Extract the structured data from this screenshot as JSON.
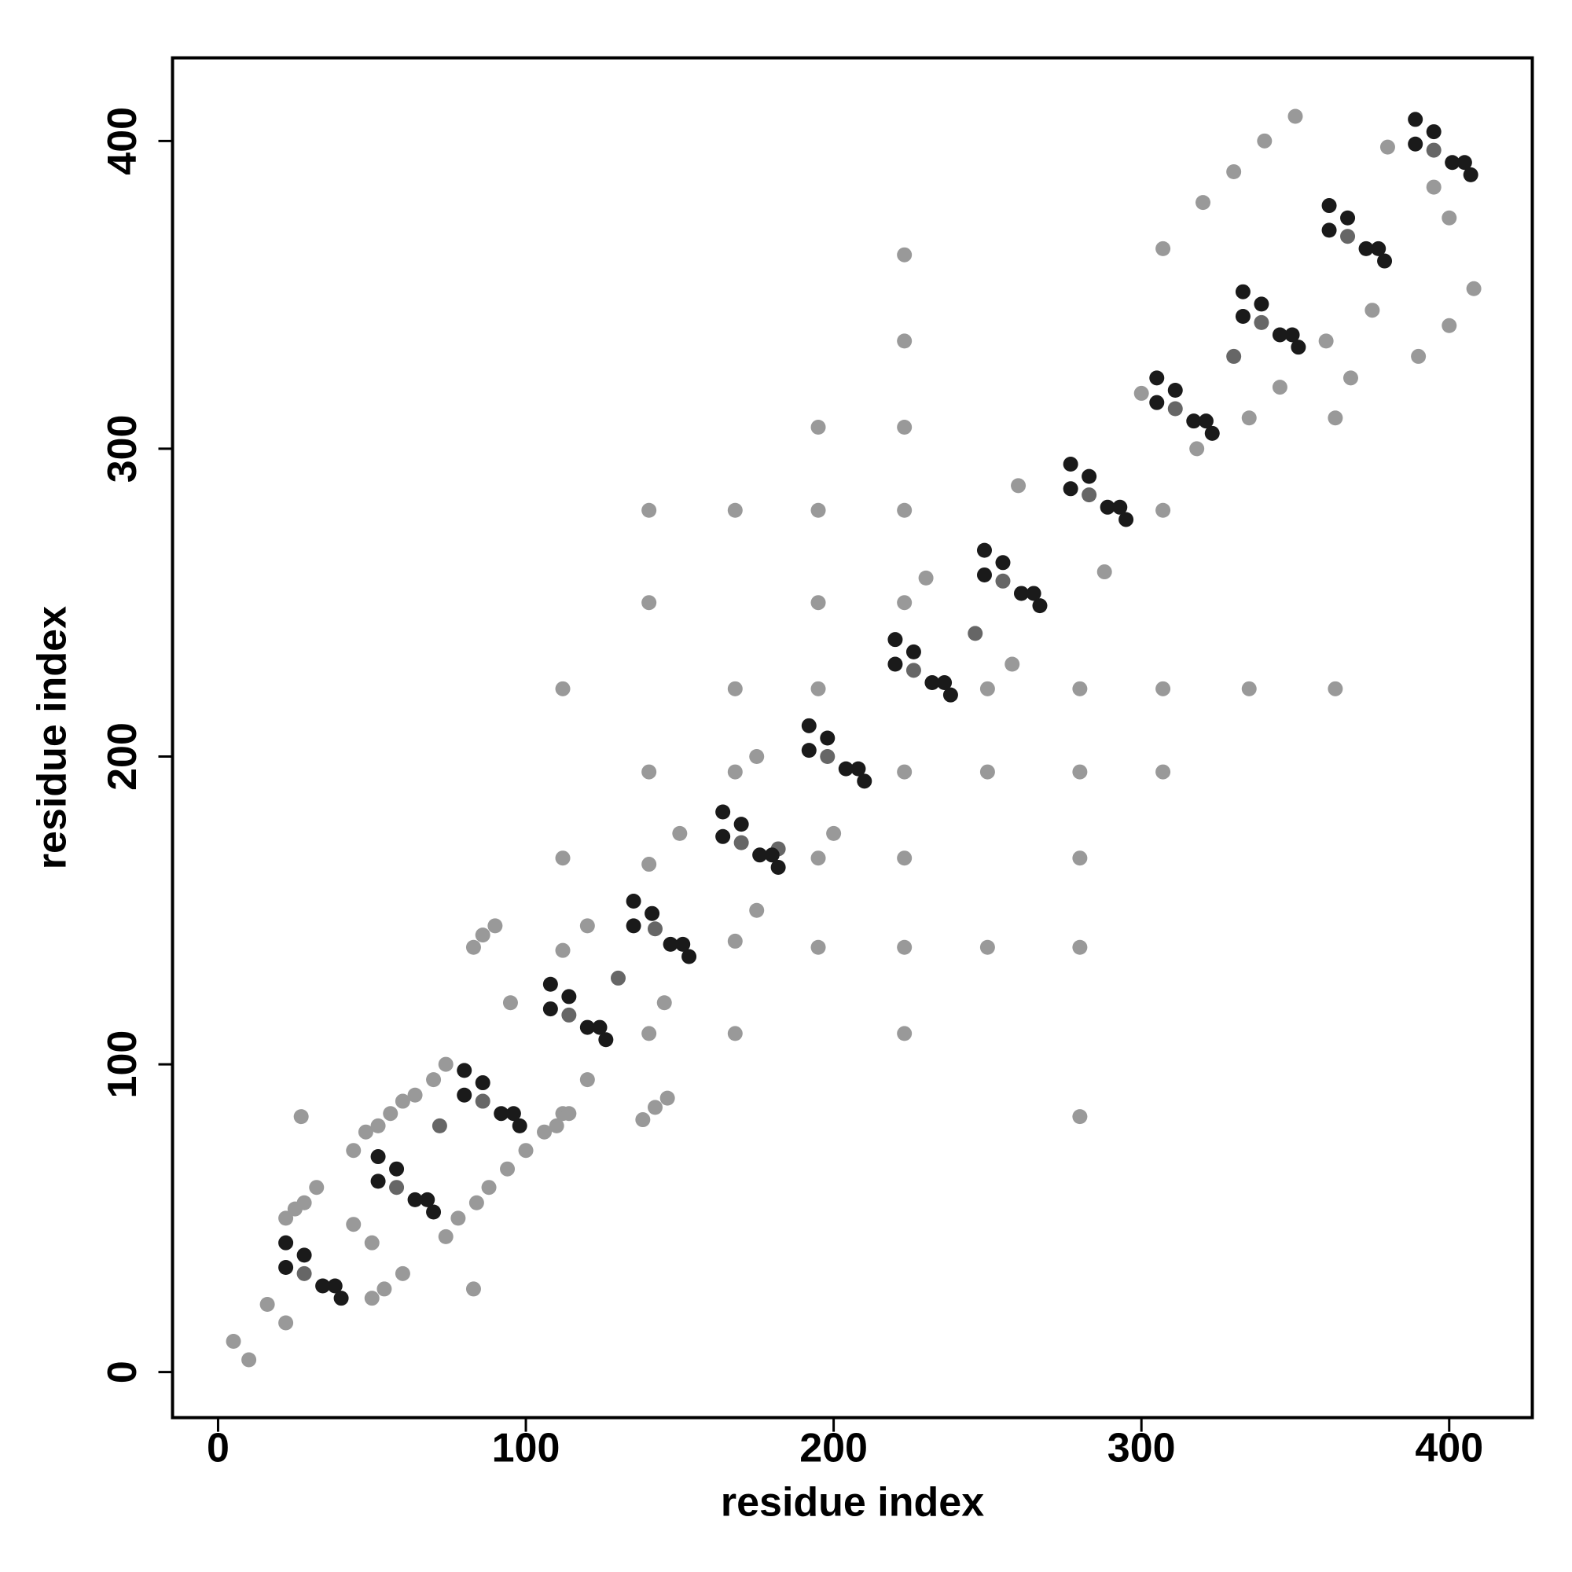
{
  "chart_data": {
    "type": "scatter",
    "xlabel": "residue index",
    "ylabel": "residue index",
    "xlim": [
      -14.8,
      427
    ],
    "ylim": [
      -14.8,
      427
    ],
    "xticks": [
      0,
      100,
      200,
      300,
      400
    ],
    "yticks": [
      0,
      100,
      200,
      300,
      400
    ],
    "series": [
      {
        "color": "#999999",
        "x": [
          5,
          10,
          16,
          22,
          27,
          22,
          25,
          28,
          32,
          44,
          48,
          52,
          56,
          60,
          64,
          70,
          74,
          44,
          50,
          50,
          54,
          60,
          74,
          78,
          84,
          88,
          94,
          100,
          106,
          112,
          83,
          83,
          86,
          90,
          110,
          114,
          138,
          142,
          146,
          112,
          112,
          112,
          140,
          140,
          140,
          140,
          140,
          168,
          168,
          168,
          168,
          168,
          195,
          195,
          195,
          195,
          195,
          195,
          223,
          223,
          223,
          223,
          223,
          223,
          223,
          223,
          223,
          250,
          250,
          250,
          280,
          280,
          280,
          280,
          280,
          307,
          307,
          335,
          363,
          307,
          320,
          330,
          340,
          350,
          335,
          345,
          360,
          375,
          390,
          400,
          408,
          307,
          363,
          368,
          380,
          395,
          400,
          300,
          318,
          260,
          288,
          230,
          258,
          175,
          200,
          150,
          175,
          120,
          145,
          95,
          120
        ],
        "y": [
          10,
          4,
          22,
          16,
          83,
          50,
          53,
          55,
          60,
          72,
          78,
          80,
          84,
          88,
          90,
          95,
          100,
          48,
          42,
          24,
          27,
          32,
          44,
          50,
          55,
          60,
          66,
          72,
          78,
          84,
          27,
          138,
          142,
          145,
          80,
          84,
          82,
          86,
          89,
          137,
          167,
          222,
          110,
          165,
          195,
          250,
          280,
          110,
          140,
          195,
          222,
          280,
          138,
          167,
          222,
          250,
          280,
          307,
          110,
          138,
          167,
          195,
          250,
          280,
          307,
          335,
          363,
          138,
          195,
          222,
          83,
          138,
          167,
          195,
          222,
          195,
          222,
          222,
          222,
          280,
          380,
          390,
          400,
          408,
          310,
          320,
          335,
          345,
          330,
          340,
          352,
          365,
          310,
          323,
          398,
          385,
          375,
          318,
          300,
          288,
          260,
          258,
          230,
          200,
          175,
          175,
          150,
          145,
          120,
          120,
          95
        ]
      },
      {
        "color": "#666666",
        "x": [
          28,
          58,
          86,
          114,
          142,
          170,
          198,
          226,
          255,
          283,
          311,
          339,
          367,
          395,
          72,
          130,
          182,
          246,
          330
        ],
        "y": [
          32,
          60,
          88,
          116,
          144,
          172,
          200,
          228,
          257,
          285,
          313,
          341,
          369,
          397,
          80,
          128,
          170,
          240,
          330
        ]
      },
      {
        "color": "#1a1a1a",
        "x": [
          22,
          22,
          28,
          34,
          38,
          40,
          52,
          52,
          58,
          64,
          68,
          70,
          80,
          80,
          86,
          92,
          96,
          98,
          108,
          108,
          114,
          120,
          124,
          126,
          135,
          135,
          141,
          147,
          151,
          153,
          164,
          164,
          170,
          176,
          180,
          182,
          192,
          192,
          198,
          204,
          208,
          210,
          220,
          220,
          226,
          232,
          236,
          238,
          249,
          249,
          255,
          261,
          265,
          267,
          277,
          277,
          283,
          289,
          293,
          295,
          305,
          305,
          311,
          317,
          321,
          323,
          333,
          333,
          339,
          345,
          349,
          351,
          361,
          361,
          367,
          373,
          377,
          379,
          389,
          389,
          395,
          401,
          405,
          407
        ],
        "y": [
          42,
          34,
          38,
          28,
          28,
          24,
          70,
          62,
          66,
          56,
          56,
          52,
          98,
          90,
          94,
          84,
          84,
          80,
          126,
          118,
          122,
          112,
          112,
          108,
          153,
          145,
          149,
          139,
          139,
          135,
          182,
          174,
          178,
          168,
          168,
          164,
          210,
          202,
          206,
          196,
          196,
          192,
          238,
          230,
          234,
          224,
          224,
          220,
          267,
          259,
          263,
          253,
          253,
          249,
          295,
          287,
          291,
          281,
          281,
          277,
          323,
          315,
          319,
          309,
          309,
          305,
          351,
          343,
          347,
          337,
          337,
          333,
          379,
          371,
          375,
          365,
          365,
          361,
          407,
          399,
          403,
          393,
          393,
          389
        ]
      }
    ]
  }
}
